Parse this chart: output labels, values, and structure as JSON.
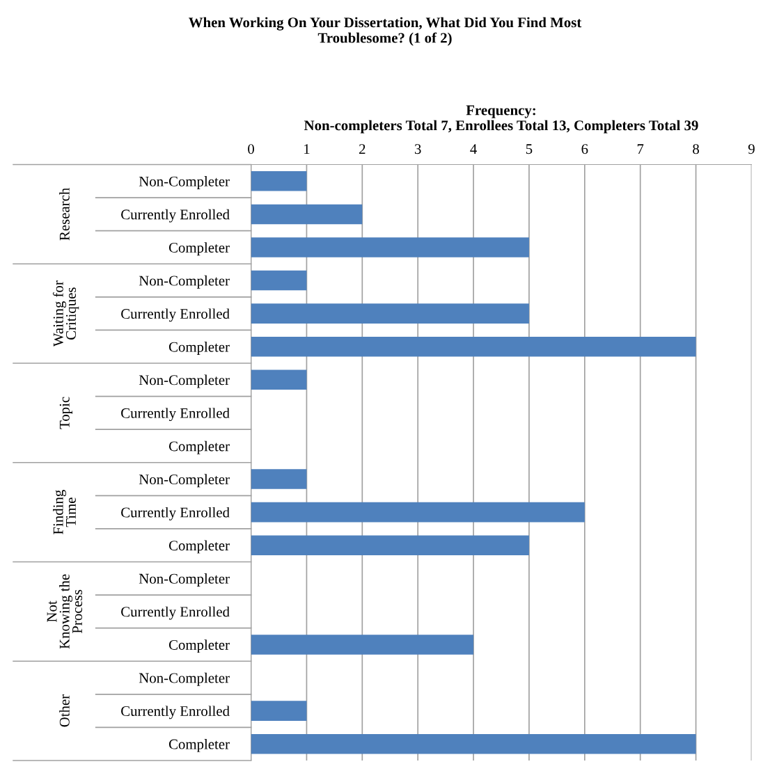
{
  "chart_data": {
    "type": "bar",
    "orientation": "horizontal",
    "title": "When Working On Your Dissertation, What Did You Find Most\nTroublesome? (1 of 2)",
    "xlabel": "Frequency:\nNon-completers Total 7, Enrollees Total 13, Completers Total 39",
    "categories": [
      "Non-Completer",
      "Currently Enrolled",
      "Completer",
      "Non-Completer",
      "Currently Enrolled",
      "Completer",
      "Non-Completer",
      "Currently Enrolled",
      "Completer",
      "Non-Completer",
      "Currently Enrolled",
      "Completer",
      "Non-Completer",
      "Currently Enrolled",
      "Completer",
      "Non-Completer",
      "Currently Enrolled",
      "Completer"
    ],
    "values": [
      1,
      2,
      5,
      1,
      5,
      8,
      1,
      0,
      0,
      1,
      6,
      5,
      0,
      0,
      4,
      0,
      1,
      8
    ],
    "color": "#4f81bd",
    "annotations": [
      "Research",
      "Waiting for\nCritiques",
      "Topic",
      "Finding\nTime",
      "Not\nKnowing the\nProcess",
      "Other"
    ],
    "xlim": [
      0,
      9
    ],
    "xticks": [
      0,
      1,
      2,
      3,
      4,
      5,
      6,
      7,
      8,
      9
    ],
    "grid": "x"
  }
}
